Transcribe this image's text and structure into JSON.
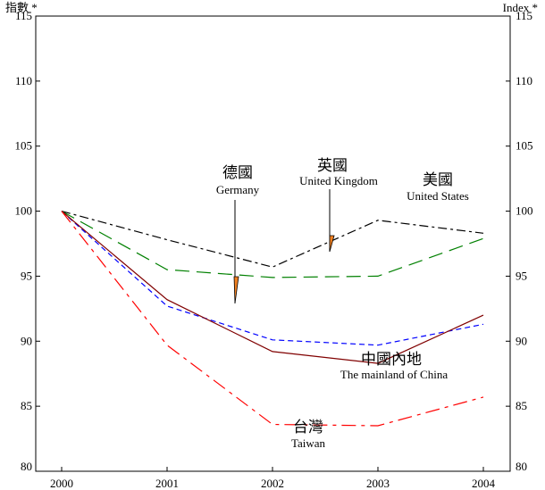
{
  "chart_data": {
    "type": "line",
    "title": "",
    "y_label_left": "指數 *",
    "y_label_right": "Index *",
    "x": [
      "2000",
      "2001",
      "2002",
      "2003",
      "2004"
    ],
    "ylim": [
      80,
      115
    ],
    "yticks": [
      80,
      85,
      90,
      95,
      100,
      105,
      110,
      115
    ],
    "ytick_labels": [
      "80",
      "85",
      "90",
      "95",
      "100",
      "105",
      "110",
      "115"
    ],
    "grid": false,
    "series": [
      {
        "name_zh": "美國",
        "name_en": "United States",
        "color": "#000000",
        "dash": "10,4,3,4",
        "values": [
          100,
          97.8,
          95.7,
          99.3,
          98.3
        ]
      },
      {
        "name_zh": "英國",
        "name_en": "United Kingdom",
        "color": "#008000",
        "dash": "16,8",
        "values": [
          100,
          95.5,
          94.9,
          95.0,
          97.9
        ]
      },
      {
        "name_zh": "德國",
        "name_en": "Germany",
        "color": "#0000ff",
        "dash": "6,4",
        "values": [
          100,
          92.7,
          90.1,
          89.7,
          91.3
        ]
      },
      {
        "name_zh": "中國內地",
        "name_en": "The mainland of China",
        "color": "#800000",
        "dash": "",
        "values": [
          100,
          93.2,
          89.2,
          88.3,
          92.0
        ]
      },
      {
        "name_zh": "台灣",
        "name_en": "Taiwan",
        "color": "#ff0000",
        "dash": "16,6,4,6",
        "values": [
          100,
          89.7,
          83.6,
          83.5,
          85.7
        ]
      }
    ]
  }
}
